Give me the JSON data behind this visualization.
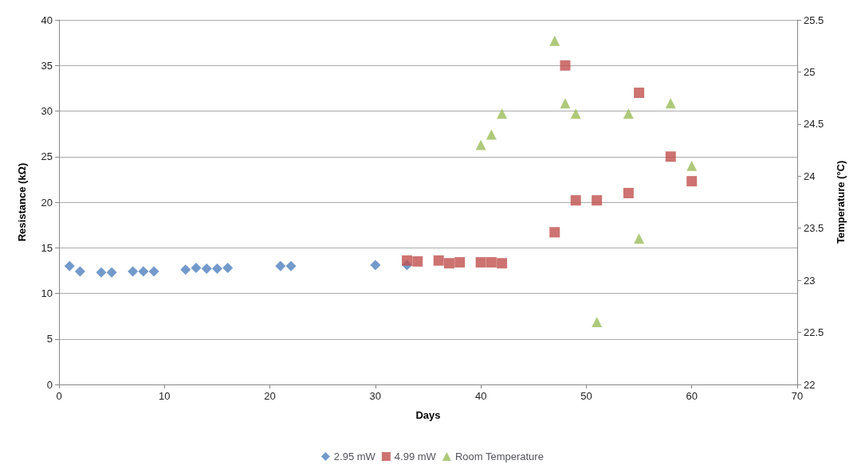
{
  "chart_data": {
    "type": "scatter",
    "xlabel": "Days",
    "ylabel": "Resistance (kΩ)",
    "y2label": "Temperature (°C)",
    "xlim": [
      0,
      70
    ],
    "xticks": [
      0,
      10,
      20,
      30,
      40,
      50,
      60,
      70
    ],
    "ylim": [
      0,
      40
    ],
    "yticks": [
      0,
      5,
      10,
      15,
      20,
      25,
      30,
      35,
      40
    ],
    "y2lim": [
      22,
      25.5
    ],
    "y2ticks": [
      22,
      22.5,
      23,
      23.5,
      24,
      24.5,
      25,
      25.5
    ],
    "grid": "y",
    "legend": "bottom",
    "series": [
      {
        "name": "2.95 mW",
        "color": "#4f81bd",
        "marker": "diamond",
        "x": [
          1,
          2,
          4,
          5,
          7,
          8,
          9,
          12,
          13,
          14,
          15,
          16,
          21,
          22,
          30,
          33
        ],
        "values": [
          13.0,
          12.4,
          12.3,
          12.3,
          12.4,
          12.4,
          12.4,
          12.6,
          12.8,
          12.7,
          12.7,
          12.8,
          13.0,
          13.0,
          13.1,
          13.1
        ]
      },
      {
        "name": "4.99 mW",
        "color": "#c0504d",
        "marker": "square",
        "x": [
          33,
          34,
          36,
          37,
          38,
          40,
          41,
          42,
          47,
          48,
          49,
          51,
          54,
          55,
          58,
          60
        ],
        "values": [
          13.6,
          13.5,
          13.6,
          13.3,
          13.4,
          13.4,
          13.4,
          13.3,
          16.7,
          35,
          20.2,
          20.2,
          21,
          32,
          25,
          22.3
        ]
      },
      {
        "name": "Room Temperature",
        "color": "#9bbb59",
        "marker": "triangle",
        "axis": "y2",
        "x": [
          40,
          41,
          42,
          47,
          48,
          49,
          51,
          54,
          55,
          58,
          60
        ],
        "values": [
          24.3,
          24.4,
          24.6,
          25.3,
          24.7,
          24.6,
          22.6,
          24.6,
          23.4,
          24.7,
          24.1
        ]
      }
    ]
  }
}
